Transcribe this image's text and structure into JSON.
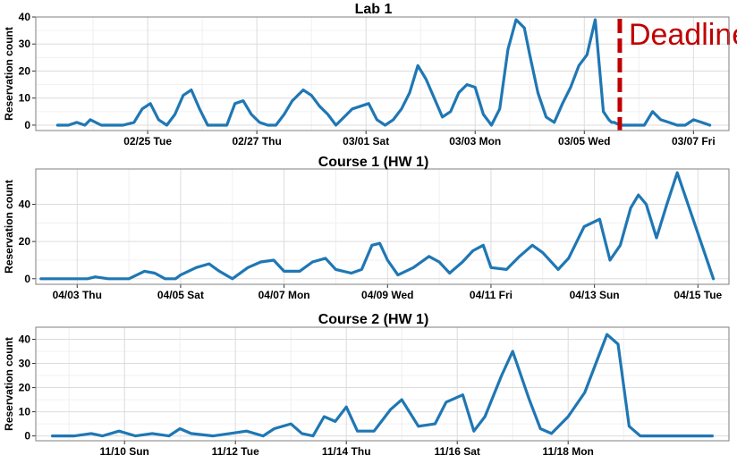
{
  "chart_data": [
    {
      "type": "line",
      "title": "Lab 1",
      "xlabel": "",
      "ylabel": "Reservation count",
      "grid": true,
      "x_tick_labels": [
        "02/25 Tue",
        "02/27 Thu",
        "03/01 Sat",
        "03/03 Mon",
        "03/05 Wed",
        "03/07 Fri"
      ],
      "x_range": [
        -1.5,
        11.2
      ],
      "ylim": [
        -2,
        40
      ],
      "yticks": [
        0,
        10,
        20,
        30,
        40
      ],
      "color": "#1f77b4",
      "series": [
        {
          "x": [
            -1.1,
            -0.9,
            -0.75,
            -0.6,
            -0.5,
            -0.3,
            -0.1,
            0.1,
            0.3,
            0.45,
            0.6,
            0.75,
            0.9,
            1.05,
            1.2,
            1.35,
            1.5,
            1.65,
            1.8,
            2.0,
            2.15,
            2.3,
            2.45,
            2.6,
            2.75,
            2.9,
            3.05,
            3.2,
            3.4,
            3.55,
            3.7,
            3.85,
            4.0,
            4.15,
            4.3,
            4.45,
            4.6,
            4.75,
            4.9,
            5.05,
            5.2,
            5.35,
            5.5,
            5.65,
            5.8,
            5.95,
            6.1,
            6.25,
            6.4,
            6.55,
            6.7,
            6.85,
            7.0,
            7.15,
            7.3,
            7.45,
            7.55,
            7.7,
            7.85,
            8.0,
            8.15,
            8.3,
            8.45,
            8.6,
            8.75,
            8.9,
            9.0,
            9.05,
            9.1,
            9.2,
            9.35,
            9.5,
            9.65,
            9.8,
            9.95,
            10.1,
            10.25,
            10.4,
            10.55,
            10.7,
            10.85
          ],
          "y": [
            0,
            0,
            1,
            0,
            2,
            0,
            0,
            0,
            1,
            6,
            8,
            2,
            0,
            4,
            11,
            13,
            6,
            0,
            0,
            0,
            8,
            9,
            4,
            1,
            0,
            0,
            4,
            9,
            13,
            11,
            7,
            4,
            0,
            3,
            6,
            7,
            8,
            2,
            0,
            2,
            6,
            12,
            22,
            17,
            10,
            3,
            5,
            12,
            15,
            14,
            4,
            0,
            6,
            28,
            39,
            36,
            26,
            12,
            3,
            1,
            8,
            14,
            22,
            26,
            39,
            5,
            2,
            1,
            1,
            0,
            0,
            0,
            0,
            5,
            2,
            1,
            0,
            0,
            2,
            1,
            0
          ]
        }
      ],
      "annotations": [
        {
          "type": "vline",
          "x": 9.2,
          "color": "#c00000",
          "label": "Deadline"
        }
      ]
    },
    {
      "type": "line",
      "title": "Course 1 (HW 1)",
      "xlabel": "",
      "ylabel": "Reservation count",
      "grid": true,
      "x_tick_labels": [
        "04/03 Thu",
        "04/05 Sat",
        "04/07 Mon",
        "04/09 Wed",
        "04/11 Fri",
        "04/13 Sun",
        "04/15 Tue"
      ],
      "x_range": [
        -0.8,
        12.6
      ],
      "ylim": [
        -3,
        59
      ],
      "yticks": [
        0,
        20,
        40
      ],
      "color": "#1f77b4",
      "series": [
        {
          "x": [
            -0.7,
            0.2,
            0.35,
            0.6,
            1.0,
            1.3,
            1.5,
            1.7,
            1.9,
            2.0,
            2.3,
            2.55,
            2.75,
            3.0,
            3.3,
            3.55,
            3.8,
            4.0,
            4.3,
            4.55,
            4.8,
            5.0,
            5.3,
            5.5,
            5.7,
            5.85,
            6.0,
            6.2,
            6.5,
            6.8,
            7.0,
            7.2,
            7.45,
            7.65,
            7.85,
            8.0,
            8.3,
            8.55,
            8.8,
            9.0,
            9.3,
            9.5,
            9.8,
            10.1,
            10.3,
            10.5,
            10.7,
            10.85,
            11.0,
            11.2,
            11.4,
            11.6,
            12.3
          ],
          "y": [
            0,
            0,
            1,
            0,
            0,
            4,
            3,
            0,
            0,
            2,
            6,
            8,
            4,
            0,
            6,
            9,
            10,
            4,
            4,
            9,
            11,
            5,
            3,
            5,
            18,
            19,
            10,
            2,
            6,
            12,
            9,
            3,
            9,
            15,
            18,
            6,
            5,
            12,
            18,
            14,
            5,
            11,
            28,
            32,
            10,
            18,
            38,
            45,
            40,
            22,
            40,
            57,
            0
          ]
        }
      ],
      "annotations": []
    },
    {
      "type": "line",
      "title": "Course 2 (HW 1)",
      "xlabel": "",
      "ylabel": "Reservation count",
      "grid": true,
      "x_tick_labels": [
        "11/10 Sun",
        "11/12 Tue",
        "11/14 Thu",
        "11/16 Sat",
        "11/18 Mon"
      ],
      "x_range": [
        -1.6,
        10.9
      ],
      "ylim": [
        -2,
        45
      ],
      "yticks": [
        0,
        10,
        20,
        30,
        40
      ],
      "color": "#1f77b4",
      "series": [
        {
          "x": [
            -1.3,
            -0.9,
            -0.6,
            -0.4,
            -0.1,
            0.2,
            0.5,
            0.8,
            1.0,
            1.2,
            1.6,
            1.9,
            2.2,
            2.5,
            2.7,
            3.0,
            3.2,
            3.4,
            3.6,
            3.8,
            4.0,
            4.2,
            4.5,
            4.8,
            5.0,
            5.3,
            5.6,
            5.8,
            6.1,
            6.3,
            6.5,
            6.8,
            7.0,
            7.3,
            7.5,
            7.7,
            8.0,
            8.3,
            8.5,
            8.7,
            8.9,
            9.1,
            9.3,
            10.6
          ],
          "y": [
            0,
            0,
            1,
            0,
            2,
            0,
            1,
            0,
            3,
            1,
            0,
            1,
            2,
            0,
            3,
            5,
            1,
            0,
            8,
            6,
            12,
            2,
            2,
            11,
            15,
            4,
            5,
            14,
            17,
            2,
            8,
            25,
            35,
            15,
            3,
            1,
            8,
            18,
            30,
            42,
            38,
            4,
            0,
            0
          ]
        }
      ],
      "annotations": []
    }
  ]
}
